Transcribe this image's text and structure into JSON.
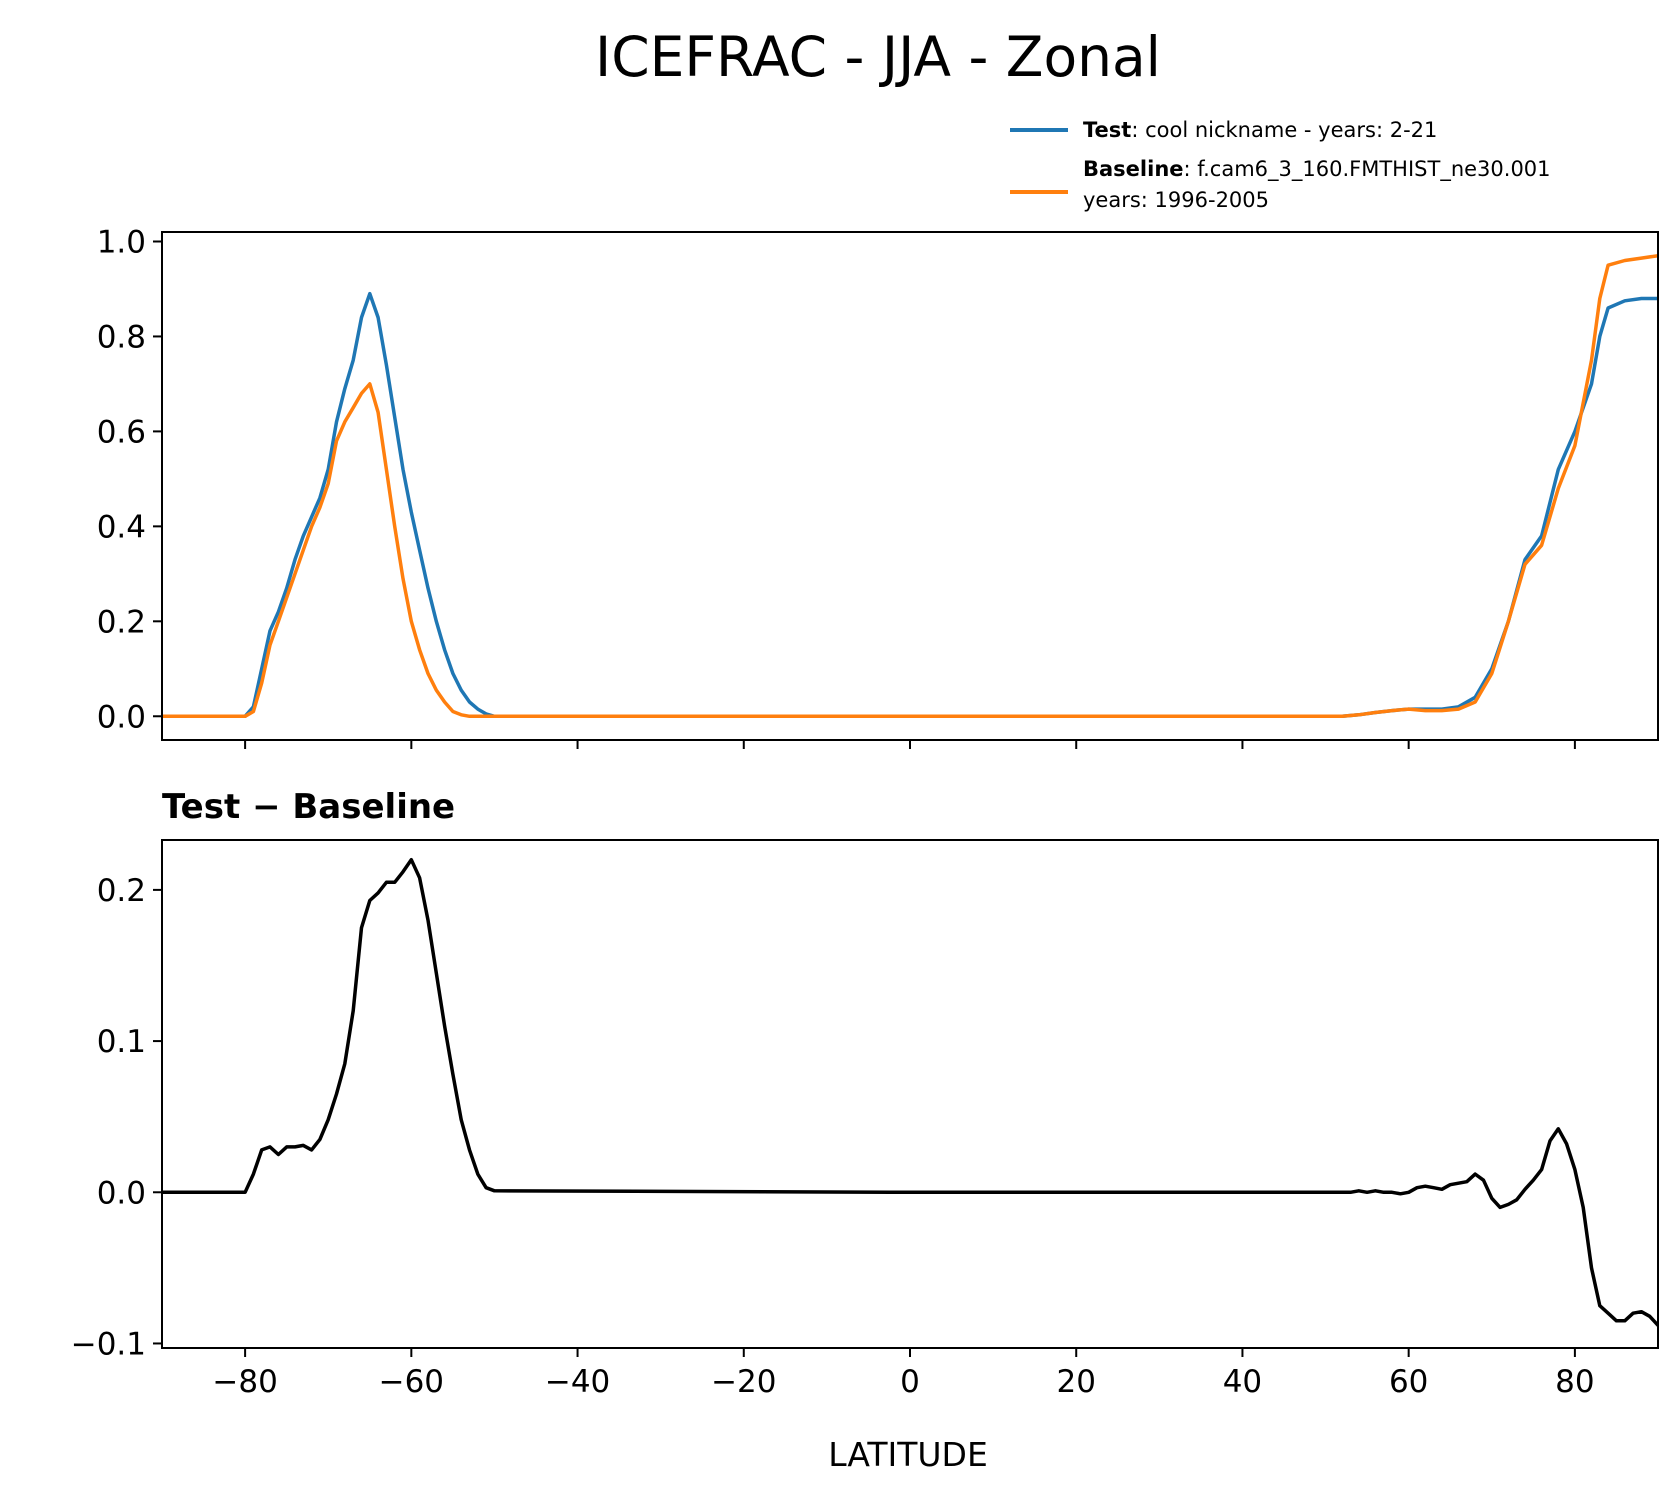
{
  "chart_data": {
    "type": "line",
    "title": "ICEFRAC - JJA - Zonal",
    "xlabel": "LATITUDE",
    "xlim": [
      -90,
      90
    ],
    "xticks": [
      -80,
      -60,
      -40,
      -20,
      0,
      20,
      40,
      60,
      80
    ],
    "xtick_labels": [
      "−80",
      "−60",
      "−40",
      "−20",
      "0",
      "20",
      "40",
      "60",
      "80"
    ],
    "legend": {
      "placement": "top-right",
      "entries": [
        {
          "bold": "Test",
          "text": ": cool nickname - years: 2-21",
          "text2": "",
          "color": "#1f77b4"
        },
        {
          "bold": "Baseline",
          "text": ": f.cam6_3_160.FMTHIST_ne30.001",
          "text2": "years: 1996-2005",
          "color": "#ff7f0e"
        }
      ]
    },
    "panels": [
      {
        "subtitle": "",
        "ylim": [
          -0.05,
          1.02
        ],
        "yticks": [
          0.0,
          0.2,
          0.4,
          0.6,
          0.8,
          1.0
        ],
        "ytick_labels": [
          "0.0",
          "0.2",
          "0.4",
          "0.6",
          "0.8",
          "1.0"
        ],
        "show_xtick_labels": false,
        "series": [
          {
            "name": "Test",
            "color": "#1f77b4",
            "x": [
              -90,
              -80,
              -79,
              -78,
              -77,
              -76,
              -75,
              -74,
              -73,
              -72,
              -71,
              -70,
              -69,
              -68,
              -67,
              -66,
              -65,
              -64,
              -63,
              -62,
              -61,
              -60,
              -59,
              -58,
              -57,
              -56,
              -55,
              -54,
              -53,
              -52,
              -51,
              -50,
              0,
              50,
              52,
              54,
              56,
              58,
              60,
              62,
              64,
              66,
              68,
              70,
              72,
              74,
              76,
              78,
              80,
              82,
              83,
              84,
              86,
              88,
              90
            ],
            "y": [
              0.0,
              0.0,
              0.02,
              0.1,
              0.18,
              0.22,
              0.27,
              0.33,
              0.38,
              0.42,
              0.46,
              0.52,
              0.62,
              0.69,
              0.75,
              0.84,
              0.89,
              0.84,
              0.74,
              0.63,
              0.52,
              0.43,
              0.35,
              0.27,
              0.2,
              0.14,
              0.09,
              0.055,
              0.03,
              0.015,
              0.005,
              0.0,
              0.0,
              0.0,
              0.0,
              0.003,
              0.008,
              0.012,
              0.015,
              0.015,
              0.015,
              0.02,
              0.04,
              0.1,
              0.2,
              0.33,
              0.38,
              0.52,
              0.6,
              0.7,
              0.8,
              0.86,
              0.875,
              0.88,
              0.88
            ]
          },
          {
            "name": "Baseline",
            "color": "#ff7f0e",
            "x": [
              -90,
              -80,
              -79,
              -78,
              -77,
              -76,
              -75,
              -74,
              -73,
              -72,
              -71,
              -70,
              -69,
              -68,
              -67,
              -66,
              -65,
              -64,
              -63,
              -62,
              -61,
              -60,
              -59,
              -58,
              -57,
              -56,
              -55,
              -54,
              -53,
              -52,
              -51,
              -50,
              0,
              50,
              52,
              54,
              56,
              58,
              60,
              62,
              64,
              66,
              68,
              70,
              72,
              74,
              76,
              78,
              80,
              82,
              83,
              84,
              86,
              88,
              90
            ],
            "y": [
              0.0,
              0.0,
              0.01,
              0.07,
              0.15,
              0.2,
              0.25,
              0.3,
              0.35,
              0.4,
              0.44,
              0.49,
              0.58,
              0.62,
              0.65,
              0.68,
              0.7,
              0.64,
              0.52,
              0.4,
              0.29,
              0.2,
              0.14,
              0.09,
              0.055,
              0.03,
              0.01,
              0.003,
              0.0,
              0.0,
              0.0,
              0.0,
              0.0,
              0.0,
              0.0,
              0.003,
              0.008,
              0.012,
              0.015,
              0.012,
              0.012,
              0.015,
              0.03,
              0.09,
              0.2,
              0.32,
              0.36,
              0.48,
              0.57,
              0.75,
              0.88,
              0.95,
              0.96,
              0.965,
              0.97
            ]
          }
        ]
      },
      {
        "subtitle": "Test − Baseline",
        "ylim": [
          -0.103,
          0.233
        ],
        "yticks": [
          -0.1,
          0.0,
          0.1,
          0.2
        ],
        "ytick_labels": [
          "−0.1",
          "0.0",
          "0.1",
          "0.2"
        ],
        "show_xtick_labels": true,
        "series": [
          {
            "name": "",
            "color": "#000000",
            "x": [
              -90,
              -80,
              -79,
              -78,
              -77,
              -76,
              -75,
              -74,
              -73,
              -72,
              -71,
              -70,
              -69,
              -68,
              -67,
              -66,
              -65,
              -64,
              -63,
              -62,
              -61,
              -60,
              -59,
              -58,
              -57,
              -56,
              -55,
              -54,
              -53,
              -52,
              -51,
              -50,
              0,
              50,
              52,
              53,
              54,
              55,
              56,
              57,
              58,
              59,
              60,
              61,
              62,
              63,
              64,
              65,
              66,
              67,
              68,
              69,
              70,
              71,
              72,
              73,
              74,
              75,
              76,
              77,
              78,
              79,
              80,
              81,
              82,
              83,
              84,
              85,
              86,
              87,
              88,
              89,
              90
            ],
            "y": [
              0.0,
              0.0,
              0.012,
              0.028,
              0.03,
              0.025,
              0.03,
              0.03,
              0.031,
              0.028,
              0.035,
              0.048,
              0.065,
              0.085,
              0.12,
              0.175,
              0.193,
              0.198,
              0.205,
              0.205,
              0.212,
              0.22,
              0.208,
              0.18,
              0.145,
              0.11,
              0.078,
              0.048,
              0.028,
              0.012,
              0.003,
              0.001,
              0.0,
              0.0,
              0.0,
              0.0,
              0.001,
              0.0,
              0.001,
              0.0,
              0.0,
              -0.001,
              0.0,
              0.003,
              0.004,
              0.003,
              0.002,
              0.005,
              0.006,
              0.007,
              0.012,
              0.008,
              -0.004,
              -0.01,
              -0.008,
              -0.005,
              0.002,
              0.008,
              0.015,
              0.034,
              0.042,
              0.032,
              0.015,
              -0.01,
              -0.05,
              -0.075,
              -0.08,
              -0.085,
              -0.085,
              -0.08,
              -0.079,
              -0.082,
              -0.088
            ]
          }
        ]
      }
    ]
  }
}
